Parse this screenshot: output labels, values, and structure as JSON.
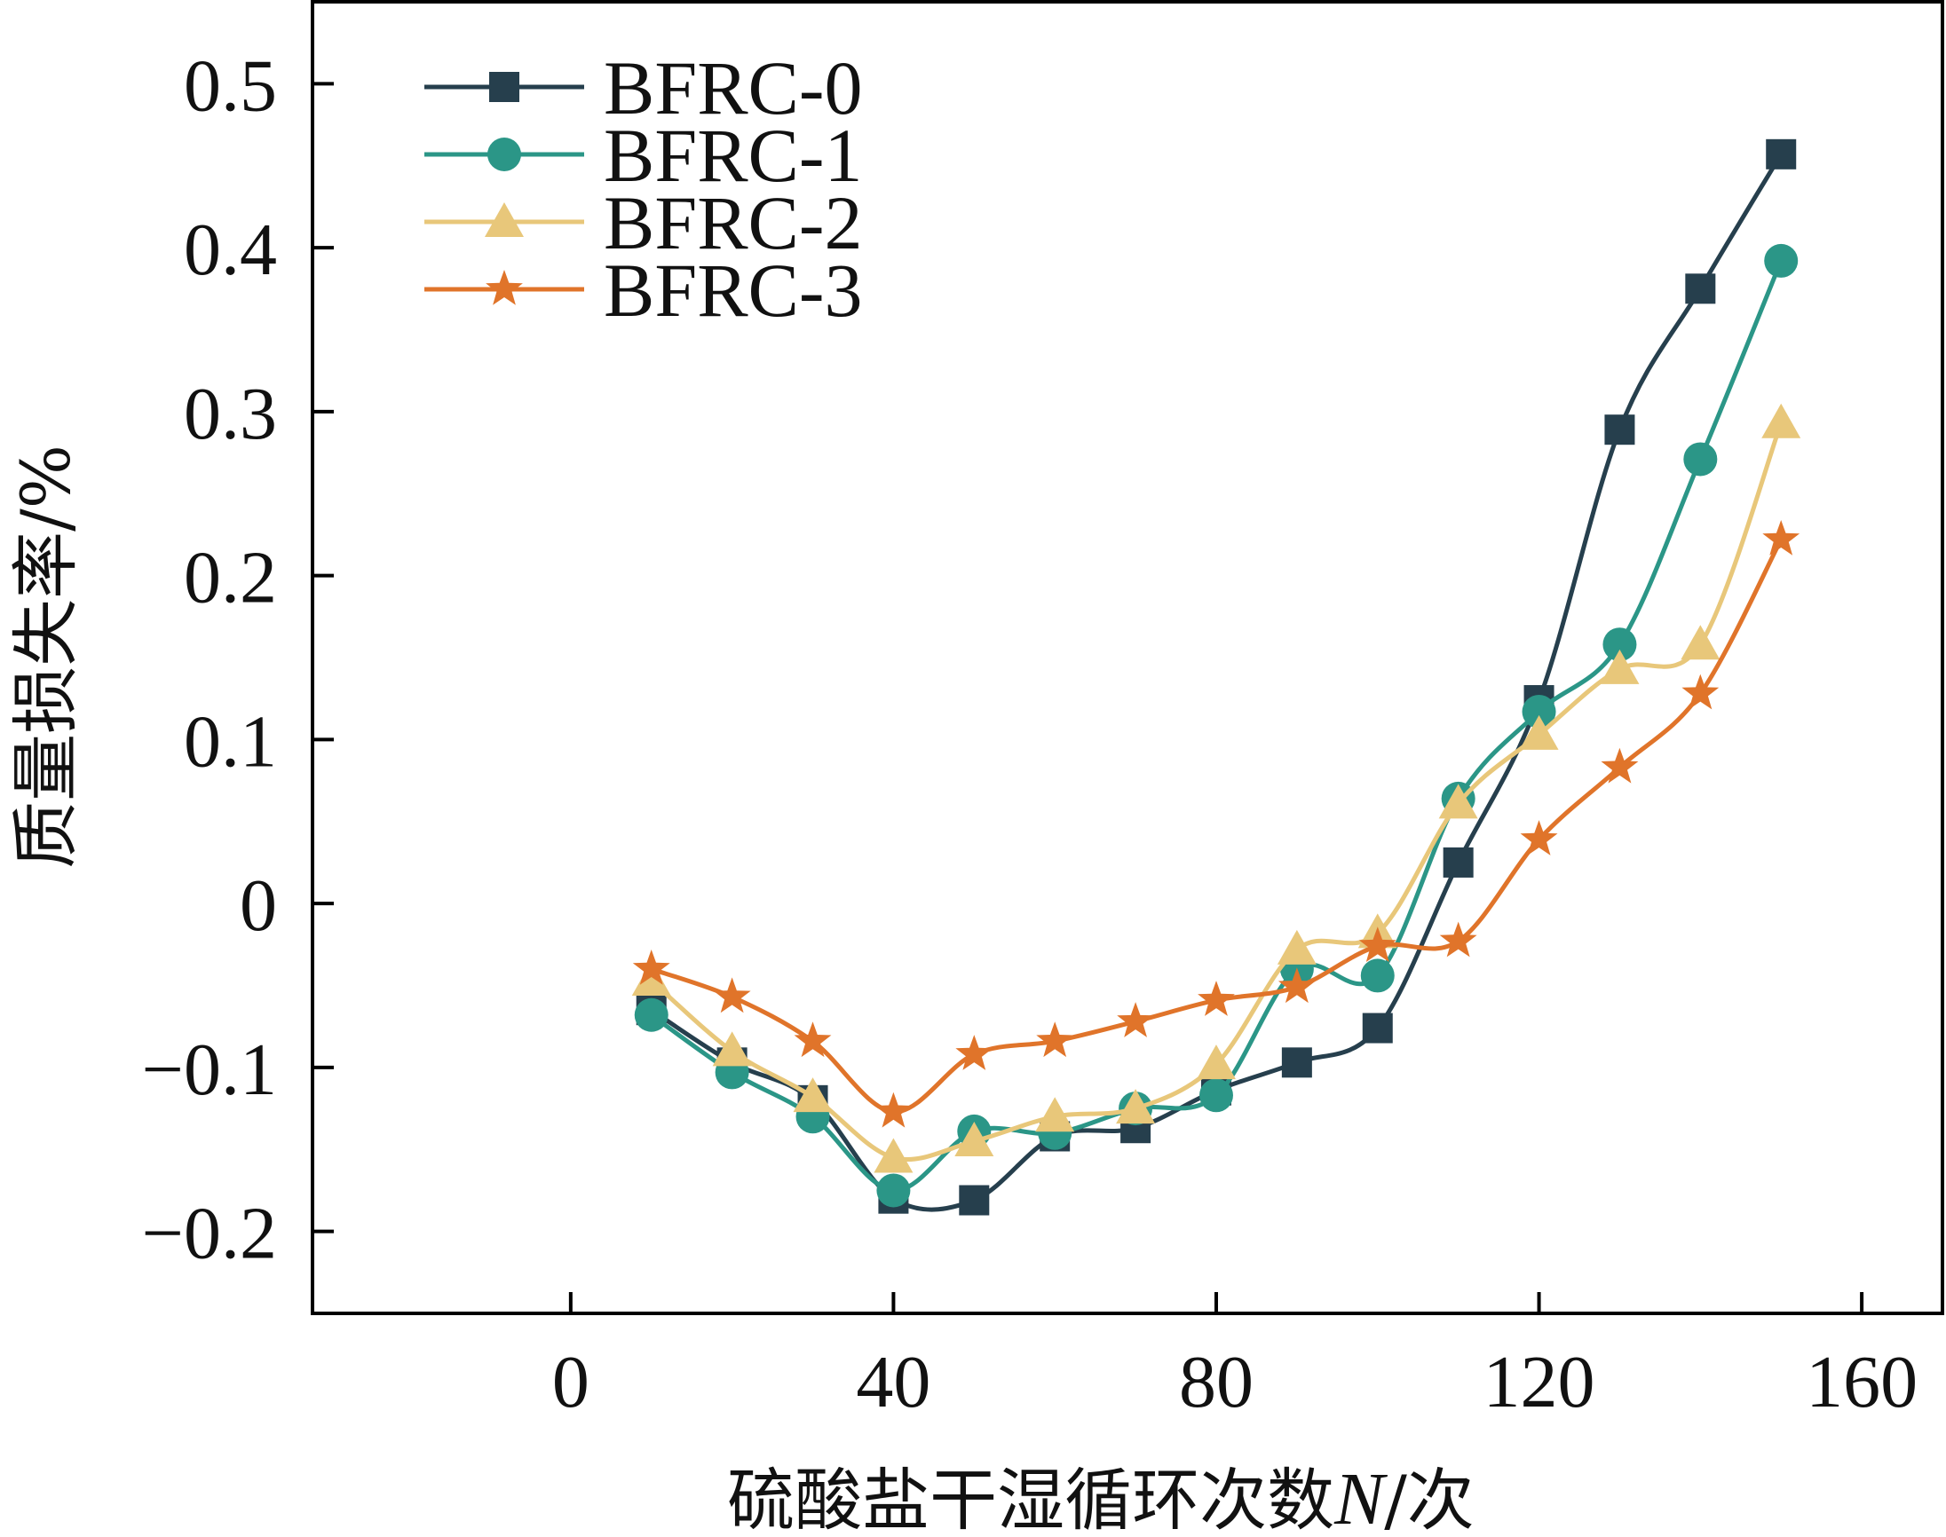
{
  "chart_data": {
    "type": "line",
    "title": "",
    "xlabel_main": "硫酸盐干湿循环次数",
    "xlabel_var": "N",
    "xlabel_unit": "/次",
    "ylabel": "质量损失率/%",
    "xlim": [
      -32,
      170
    ],
    "ylim": [
      -0.25,
      0.55
    ],
    "x_ticks": [
      0,
      40,
      80,
      120,
      160
    ],
    "x_tick_labels": [
      "0",
      "40",
      "80",
      "120",
      "160"
    ],
    "y_ticks": [
      -0.2,
      -0.1,
      0,
      0.1,
      0.2,
      0.3,
      0.4,
      0.5
    ],
    "y_tick_labels": [
      "−0.2",
      "−0.1",
      "0",
      "0.1",
      "0.2",
      "0.3",
      "0.4",
      "0.5"
    ],
    "grid": false,
    "legend_position": "top-left",
    "x": [
      10,
      20,
      30,
      40,
      50,
      60,
      70,
      80,
      90,
      100,
      110,
      120,
      130,
      140,
      150
    ],
    "series": [
      {
        "name": "BFRC-0",
        "marker": "square",
        "color": "#263f4d",
        "values": [
          -0.065,
          -0.097,
          -0.12,
          -0.18,
          -0.181,
          -0.142,
          -0.137,
          -0.114,
          -0.097,
          -0.076,
          0.025,
          0.124,
          0.289,
          0.375,
          0.457
        ]
      },
      {
        "name": "BFRC-1",
        "marker": "circle",
        "color": "#2b9687",
        "values": [
          -0.068,
          -0.103,
          -0.13,
          -0.175,
          -0.139,
          -0.14,
          -0.125,
          -0.117,
          -0.04,
          -0.044,
          0.064,
          0.117,
          0.158,
          0.271,
          0.392
        ]
      },
      {
        "name": "BFRC-2",
        "marker": "triangle",
        "color": "#e8c77a",
        "values": [
          -0.047,
          -0.09,
          -0.118,
          -0.155,
          -0.145,
          -0.13,
          -0.125,
          -0.098,
          -0.028,
          -0.018,
          0.061,
          0.103,
          0.143,
          0.158,
          0.293
        ]
      },
      {
        "name": "BFRC-3",
        "marker": "star",
        "color": "#e0742a",
        "values": [
          -0.04,
          -0.057,
          -0.084,
          -0.127,
          -0.092,
          -0.084,
          -0.072,
          -0.059,
          -0.051,
          -0.026,
          -0.023,
          0.039,
          0.083,
          0.128,
          0.222
        ]
      }
    ]
  }
}
